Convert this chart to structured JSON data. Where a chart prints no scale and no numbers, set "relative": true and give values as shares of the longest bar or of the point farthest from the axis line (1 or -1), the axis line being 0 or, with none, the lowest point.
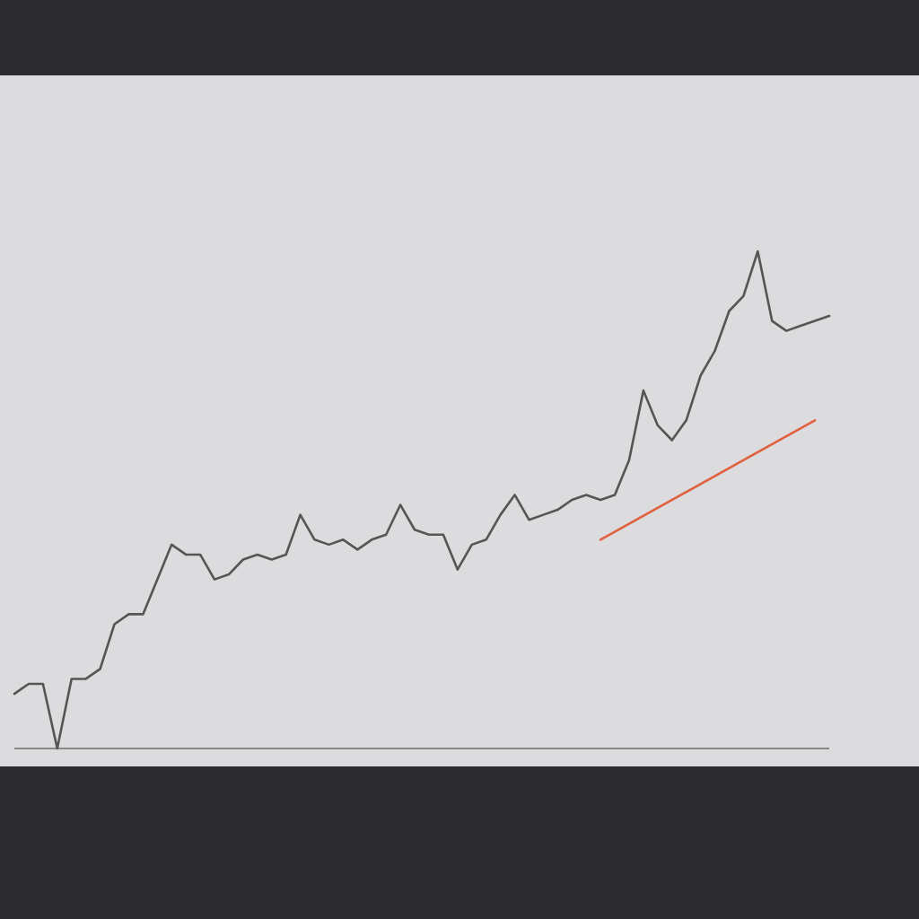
{
  "chart_data": {
    "type": "line",
    "relative": true,
    "categories": [
      null,
      null,
      null,
      null,
      null,
      null,
      null,
      null,
      null,
      null,
      null,
      null,
      null,
      null,
      null,
      null,
      null,
      null,
      null,
      null,
      null,
      null,
      null,
      null,
      null,
      null,
      null,
      null,
      null,
      null,
      null,
      null,
      null,
      null,
      null,
      null,
      null,
      null,
      null,
      null,
      null,
      null,
      null,
      null,
      null,
      null,
      null,
      null,
      null,
      null,
      null,
      null,
      null,
      null,
      null,
      null,
      null,
      null
    ],
    "series": [
      {
        "color": "#555555",
        "values": [
          0.11,
          0.13,
          0.13,
          0,
          0.14,
          0.14,
          0.16,
          0.25,
          0.27,
          0.27,
          0.34,
          0.41,
          0.39,
          0.39,
          0.34,
          0.35,
          0.38,
          0.39,
          0.38,
          0.39,
          0.47,
          0.42,
          0.41,
          0.42,
          0.4,
          0.42,
          0.43,
          0.49,
          0.44,
          0.43,
          0.43,
          0.36,
          0.41,
          0.42,
          0.47,
          0.51,
          0.46,
          0.47,
          0.48,
          0.5,
          0.51,
          0.5,
          0.51,
          0.58,
          0.72,
          0.65,
          0.62,
          0.66,
          0.75,
          0.8,
          0.88,
          0.91,
          1,
          0.86,
          0.84,
          0.85,
          0.86,
          0.87
        ]
      },
      {
        "color": "#e06040",
        "values": [
          null,
          null,
          null,
          null,
          null,
          null,
          null,
          null,
          null,
          null,
          null,
          null,
          null,
          null,
          null,
          null,
          null,
          null,
          null,
          null,
          null,
          null,
          null,
          null,
          null,
          null,
          null,
          null,
          null,
          null,
          null,
          null,
          null,
          null,
          null,
          null,
          null,
          null,
          null,
          null,
          null,
          0.42,
          null,
          null,
          null,
          null,
          null,
          null,
          null,
          null,
          null,
          null,
          null,
          null,
          null,
          null,
          0.66,
          null
        ]
      }
    ]
  }
}
